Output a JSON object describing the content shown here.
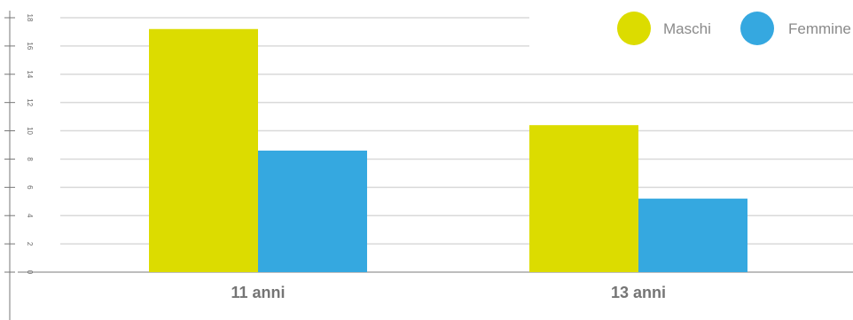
{
  "chart_data": {
    "type": "bar",
    "categories": [
      "11 anni",
      "13 anni"
    ],
    "series": [
      {
        "name": "Maschi",
        "values": [
          17.2,
          10.4
        ],
        "color": "#dcdc00"
      },
      {
        "name": "Femmine",
        "values": [
          8.6,
          5.2
        ],
        "color": "#35a8e0"
      }
    ],
    "yticks": [
      "0",
      "2",
      "4",
      "6",
      "8",
      "10",
      "12",
      "14",
      "16",
      "18"
    ],
    "ylim": [
      0,
      18
    ],
    "grid": true,
    "legend": "top-right",
    "axis_color": "#777777",
    "grid_color": "#d9d9d9"
  }
}
